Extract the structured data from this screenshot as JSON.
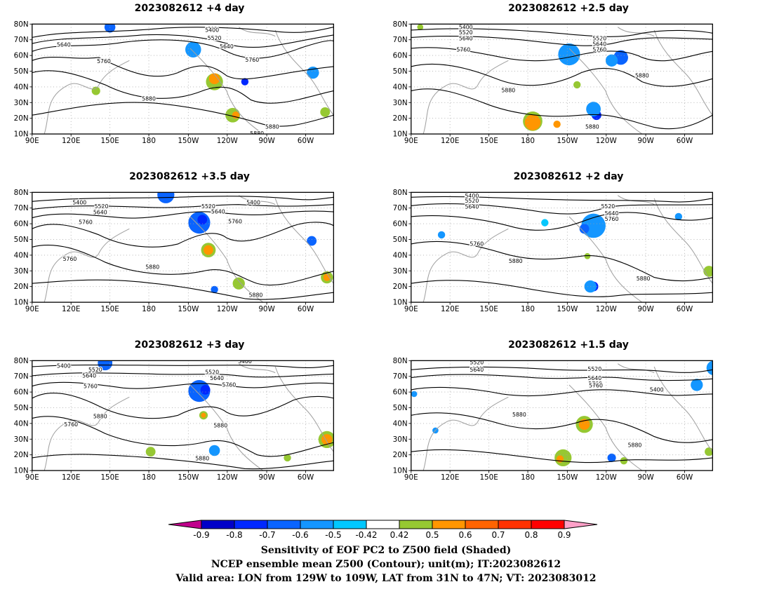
{
  "panels": [
    {
      "title": "2023082612 +4 day",
      "labels": [
        "5400",
        "5520",
        "5640",
        "5640",
        "5760",
        "5760",
        "5880",
        "5880",
        "5880"
      ]
    },
    {
      "title": "2023082612 +2.5 day",
      "labels": [
        "5400",
        "5520",
        "5640",
        "5520",
        "5640",
        "5760",
        "5760",
        "5880",
        "5880",
        "5880"
      ]
    },
    {
      "title": "2023082612 +3.5 day",
      "labels": [
        "5400",
        "5520",
        "5640",
        "5760",
        "5520",
        "5640",
        "5760",
        "5400",
        "5760",
        "5880",
        "5880"
      ]
    },
    {
      "title": "2023082612 +2 day",
      "labels": [
        "5400",
        "5520",
        "5640",
        "5520",
        "5640",
        "5760",
        "5760",
        "5880",
        "5880"
      ]
    },
    {
      "title": "2023082612 +3 day",
      "labels": [
        "5400",
        "5520",
        "5640",
        "5760",
        "5520",
        "5640",
        "5760",
        "5400",
        "5760",
        "5880",
        "5880",
        "5880"
      ]
    },
    {
      "title": "2023082612 +1.5 day",
      "labels": [
        "5520",
        "5640",
        "5520",
        "5640",
        "5760",
        "5400",
        "5760",
        "5880",
        "5880"
      ]
    }
  ],
  "axes": {
    "lat_labels": [
      "10N",
      "20N",
      "30N",
      "40N",
      "50N",
      "60N",
      "70N",
      "80N"
    ],
    "lon_labels": [
      "90E",
      "120E",
      "150E",
      "180",
      "150W",
      "120W",
      "90W",
      "60W"
    ]
  },
  "colorbar": {
    "ticks": [
      "-0.9",
      "-0.8",
      "-0.7",
      "-0.6",
      "-0.5",
      "-0.42",
      "0.42",
      "0.5",
      "0.6",
      "0.7",
      "0.8",
      "0.9"
    ],
    "colors": [
      "#c0008c",
      "#0000c8",
      "#0028ff",
      "#0a64ff",
      "#1496ff",
      "#00c8ff",
      "#ffffff",
      "#96c832",
      "#ff9600",
      "#ff6400",
      "#ff3200",
      "#ff0000",
      "#ffa0c8"
    ]
  },
  "captions": {
    "line1": "Sensitivity of EOF PC2 to Z500 field (Shaded)",
    "line2": "NCEP ensemble mean Z500 (Contour); unit(m); IT:2023082612",
    "line3": "Valid area: LON from 129W to 109W, LAT from 31N to 47N; VT: 2023083012"
  },
  "colors": {
    "contour": "#000000",
    "coast": "#a0a0a0",
    "grid": "#a0a0a0"
  }
}
